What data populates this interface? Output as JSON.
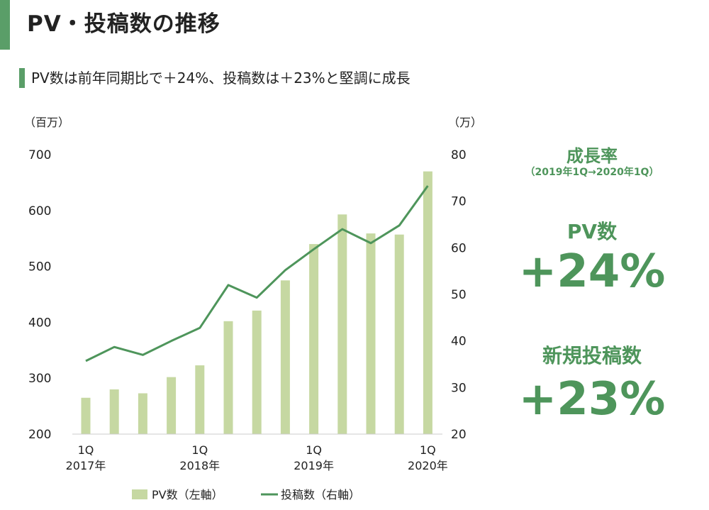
{
  "title": "PV・投稿数の推移",
  "subtitle": "PV数は前年同期比で＋24%、投稿数は＋23%と堅調に成長",
  "colors": {
    "accent": "#5a9e68",
    "bar": "#c6d8a2",
    "line": "#4e955b",
    "kpi": "#4e955b"
  },
  "chart_data": {
    "type": "bar+line",
    "left_axis": {
      "unit_label": "（百万）",
      "ylim": [
        200,
        700
      ],
      "ticks": [
        "200",
        "300",
        "400",
        "500",
        "600",
        "700"
      ]
    },
    "right_axis": {
      "unit_label": "（万）",
      "ylim": [
        20,
        80
      ],
      "ticks": [
        "20",
        "30",
        "40",
        "50",
        "60",
        "70",
        "80"
      ]
    },
    "x_tick_labels": [
      {
        "index": 0,
        "lines": [
          "1Q",
          "2017年"
        ]
      },
      {
        "index": 4,
        "lines": [
          "1Q",
          "2018年"
        ]
      },
      {
        "index": 8,
        "lines": [
          "1Q",
          "2019年"
        ]
      },
      {
        "index": 12,
        "lines": [
          "1Q",
          "2020年"
        ]
      }
    ],
    "series": [
      {
        "name": "PV数（左軸）",
        "type": "bar",
        "axis": "left",
        "values": [
          265,
          280,
          273,
          302,
          323,
          402,
          421,
          475,
          540,
          593,
          559,
          557,
          670
        ]
      },
      {
        "name": "投稿数（右軸）",
        "type": "line",
        "axis": "right",
        "values": [
          35.7,
          38.7,
          37.0,
          40.0,
          42.8,
          52.0,
          49.3,
          55.2,
          59.7,
          64.0,
          61.0,
          64.8,
          73.3
        ]
      }
    ]
  },
  "growth": {
    "title": "成長率",
    "period": "（2019年1Q→2020年1Q）",
    "pv_label": "PV数",
    "pv_value": "+24%",
    "posts_label": "新規投稿数",
    "posts_value": "+23%"
  }
}
